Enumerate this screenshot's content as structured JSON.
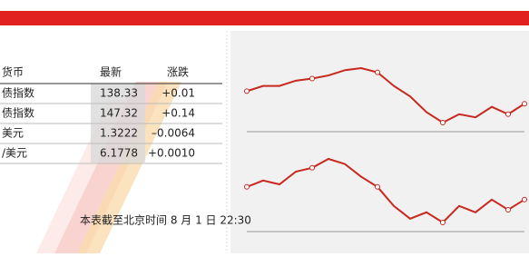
{
  "table": {
    "header": [
      "货币",
      "最新",
      "涨跌"
    ],
    "rows": [
      [
        "债指数",
        "138.33",
        "+0.01"
      ],
      [
        "债指数",
        "147.32",
        "+0.14"
      ],
      [
        "美元",
        "1.3222",
        "–0.0064"
      ],
      [
        "/美元",
        "6.1778",
        "+0.0010"
      ]
    ]
  },
  "footer": "本表截至北京时间 8 月 1 日 22:30",
  "charts": [
    {
      "type": "line",
      "color": "#c8281e",
      "values": [
        50,
        55,
        55,
        60,
        62,
        65,
        70,
        72,
        68,
        55,
        45,
        30,
        20,
        28,
        25,
        35,
        28,
        38
      ]
    },
    {
      "type": "line",
      "color": "#c8281e",
      "values": [
        50,
        55,
        52,
        62,
        65,
        72,
        68,
        58,
        50,
        35,
        25,
        30,
        22,
        35,
        30,
        40,
        32,
        40
      ]
    }
  ]
}
